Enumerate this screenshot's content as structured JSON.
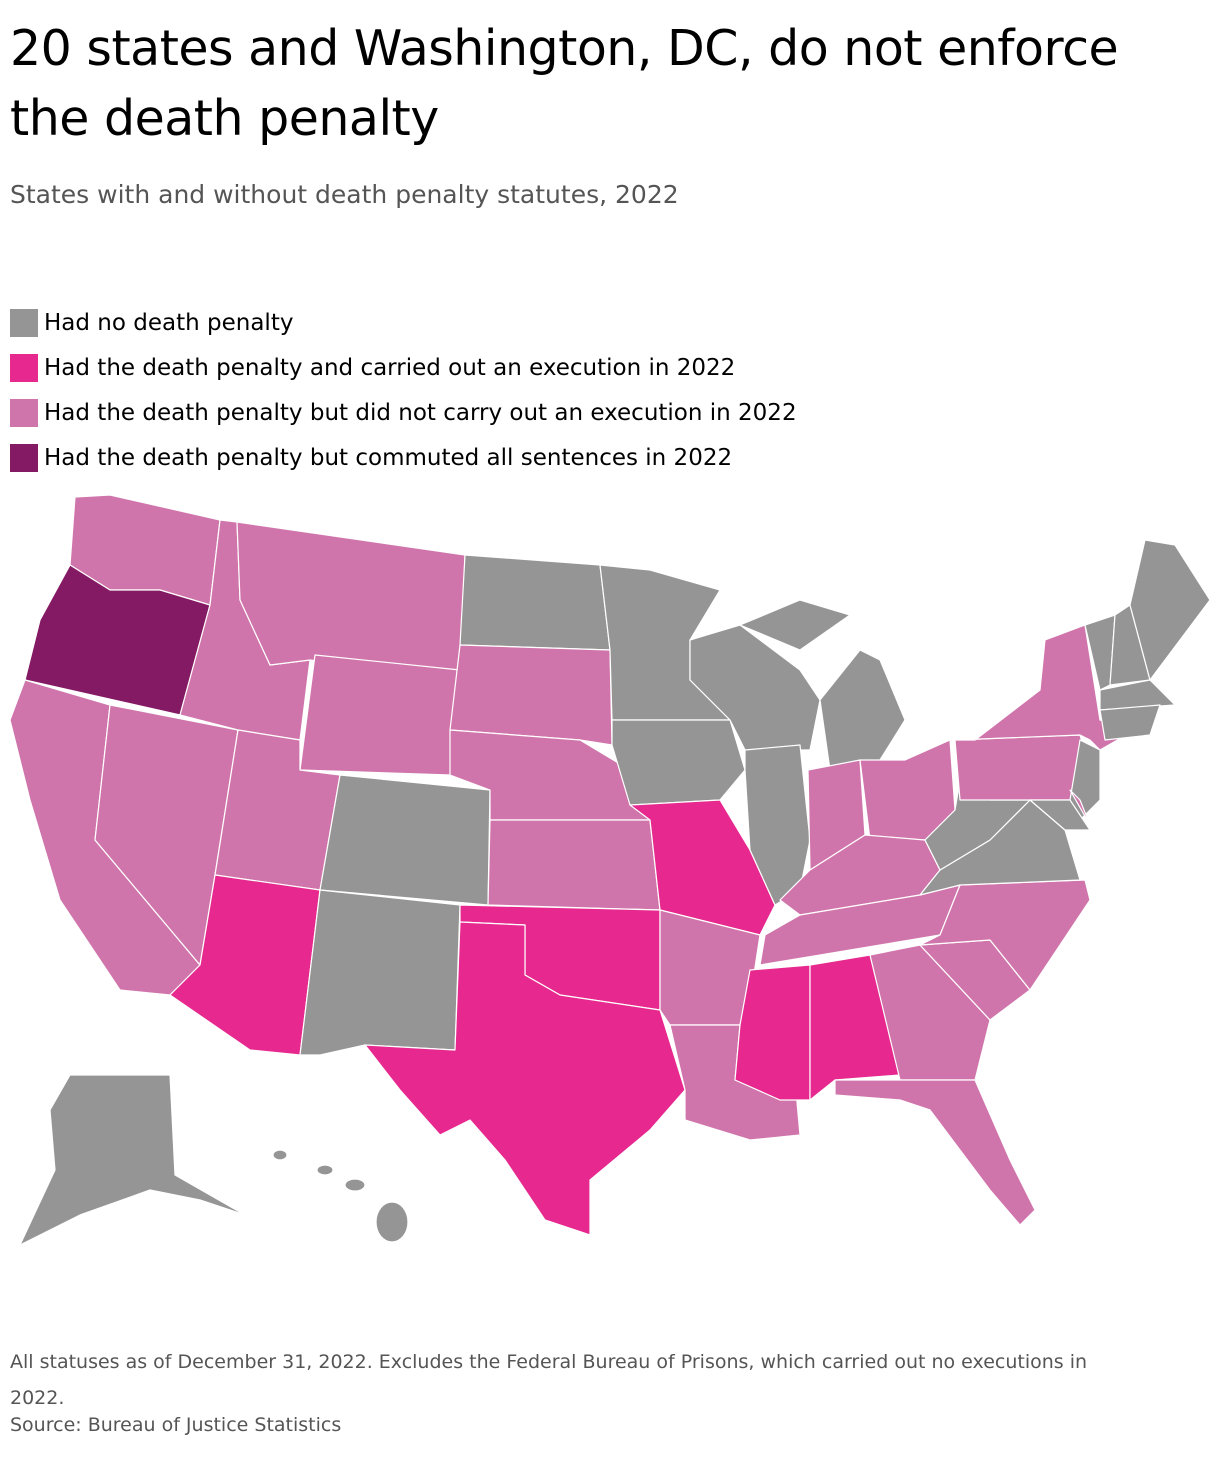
{
  "header": {
    "title": "20 states and Washington, DC, do not enforce the death penalty",
    "subtitle": "States with and without death penalty statutes, 2022"
  },
  "legend": {
    "items": [
      {
        "label": "Had no death penalty",
        "color": "#959595"
      },
      {
        "label": "Had the death penalty and carried out an execution in 2022",
        "color": "#e6288f"
      },
      {
        "label": "Had the death penalty but did not carry out an execution in 2022",
        "color": "#d075ab"
      },
      {
        "label": "Had the death penalty but commuted all sentences in 2022",
        "color": "#841a64"
      }
    ]
  },
  "footer": {
    "note": "All statuses as of December 31, 2022. Excludes the Federal Bureau of Prisons, which carried out no executions in 2022.",
    "source": "Source: Bureau of Justice Statistics"
  }
}
